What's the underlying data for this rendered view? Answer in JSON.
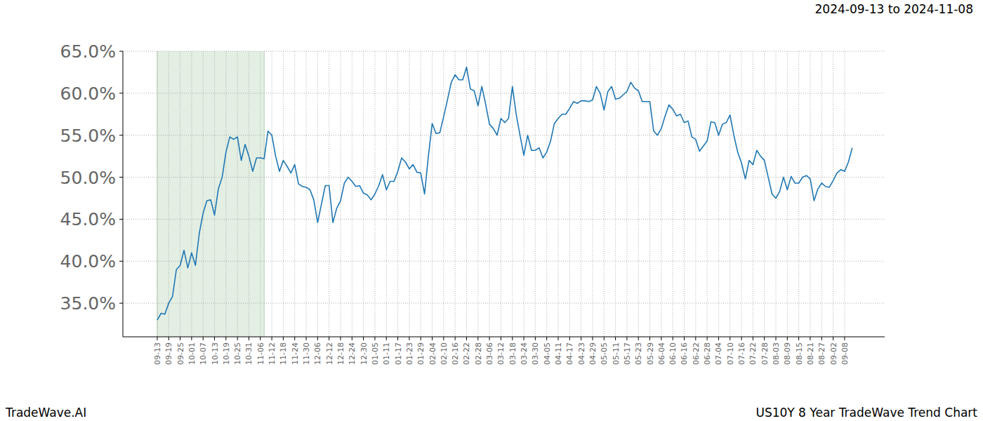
{
  "chart_data": {
    "type": "line",
    "title": "2024-09-13 to 2024-11-08",
    "annotations": [
      "TradeWave.AI",
      "US10Y 8 Year TradeWave Trend Chart"
    ],
    "categories": [
      "09-13",
      null,
      null,
      "09-19",
      null,
      null,
      "09-25",
      null,
      null,
      "10-01",
      null,
      null,
      "10-07",
      null,
      null,
      "10-13",
      null,
      null,
      "10-19",
      null,
      null,
      "10-25",
      null,
      null,
      "10-31",
      null,
      null,
      "11-06",
      null,
      null,
      "11-12",
      null,
      null,
      "11-18",
      null,
      null,
      "11-24",
      null,
      null,
      "11-30",
      null,
      null,
      "12-06",
      null,
      null,
      "12-12",
      null,
      null,
      "12-18",
      null,
      null,
      "12-24",
      null,
      null,
      "12-30",
      null,
      null,
      "01-05",
      null,
      null,
      "01-11",
      null,
      null,
      "01-17",
      null,
      null,
      "01-23",
      null,
      null,
      "01-29",
      null,
      null,
      "02-04",
      null,
      null,
      "02-10",
      null,
      null,
      "02-16",
      null,
      null,
      "02-22",
      null,
      null,
      "02-28",
      null,
      null,
      "03-06",
      null,
      null,
      "03-12",
      null,
      null,
      "03-18",
      null,
      null,
      "03-24",
      null,
      null,
      "03-30",
      null,
      null,
      "04-05",
      null,
      null,
      "04-11",
      null,
      null,
      "04-17",
      null,
      null,
      "04-23",
      null,
      null,
      "04-29",
      null,
      null,
      "05-05",
      null,
      null,
      "05-11",
      null,
      null,
      "05-17",
      null,
      null,
      "05-23",
      null,
      null,
      "05-29",
      null,
      null,
      "06-04",
      null,
      null,
      "06-10",
      null,
      null,
      "06-16",
      null,
      null,
      "06-22",
      null,
      null,
      "06-28",
      null,
      null,
      "07-04",
      null,
      null,
      "07-10",
      null,
      null,
      "07-16",
      null,
      null,
      "07-22",
      null,
      null,
      "07-28",
      null,
      null,
      "08-03",
      null,
      null,
      "08-09",
      null,
      null,
      "08-15",
      null,
      null,
      "08-21",
      null,
      null,
      "08-27",
      null,
      null,
      "09-02",
      null,
      null,
      "09-08",
      null,
      null
    ],
    "values": [
      33.0,
      33.8,
      33.7,
      35.0,
      35.8,
      39.0,
      39.5,
      41.3,
      39.2,
      41.0,
      39.5,
      43.3,
      45.7,
      47.2,
      47.3,
      45.5,
      48.6,
      50.0,
      53.0,
      54.8,
      54.5,
      54.8,
      52.0,
      53.9,
      52.5,
      50.7,
      52.3,
      52.3,
      52.2,
      55.5,
      55.0,
      52.5,
      50.7,
      52.0,
      51.3,
      50.5,
      51.5,
      49.2,
      48.9,
      48.8,
      48.5,
      47.3,
      44.6,
      46.8,
      49.0,
      49.0,
      44.6,
      46.3,
      47.2,
      49.3,
      50.0,
      49.5,
      48.9,
      49.0,
      48.1,
      47.9,
      47.3,
      48.0,
      49.0,
      50.3,
      48.5,
      49.5,
      49.5,
      50.7,
      52.3,
      51.8,
      51.0,
      51.5,
      50.6,
      50.5,
      48.0,
      52.5,
      56.4,
      55.2,
      55.3,
      57.2,
      59.2,
      61.3,
      62.2,
      61.6,
      61.6,
      63.1,
      60.5,
      60.3,
      58.5,
      60.8,
      58.7,
      56.3,
      55.8,
      55.0,
      57.0,
      56.5,
      57.0,
      60.8,
      57.5,
      55.0,
      52.6,
      55.0,
      53.2,
      53.2,
      53.5,
      52.3,
      53.0,
      54.3,
      56.4,
      57.0,
      57.5,
      57.5,
      58.2,
      59.0,
      58.8,
      59.1,
      59.1,
      59.0,
      59.2,
      60.8,
      60.0,
      58.0,
      60.2,
      60.8,
      59.3,
      59.4,
      59.8,
      60.2,
      61.3,
      60.6,
      60.3,
      59.0,
      59.0,
      59.0,
      55.5,
      55.0,
      55.8,
      57.3,
      58.6,
      58.1,
      57.3,
      57.5,
      56.5,
      56.7,
      54.8,
      54.5,
      53.1,
      53.7,
      54.3,
      56.6,
      56.5,
      55.0,
      56.3,
      56.5,
      57.4,
      55.0,
      53.0,
      51.7,
      49.8,
      52.0,
      51.5,
      53.2,
      52.5,
      52.0,
      50.0,
      48.0,
      47.5,
      48.3,
      50.0,
      48.5,
      50.1,
      49.3,
      49.3,
      50.0,
      50.2,
      49.8,
      47.2,
      48.6,
      49.3,
      48.9,
      48.8,
      49.6,
      50.5,
      50.9,
      50.7,
      51.8,
      53.5
    ],
    "color": "#1f77b4",
    "shaded_range": [
      0,
      28
    ],
    "ylim": [
      31,
      65
    ],
    "yticks": [
      {
        "value": 35,
        "label": "35.0%"
      },
      {
        "value": 40,
        "label": "40.0%"
      },
      {
        "value": 45,
        "label": "45.0%"
      },
      {
        "value": 50,
        "label": "50.0%"
      },
      {
        "value": 55,
        "label": "55.0%"
      },
      {
        "value": 60,
        "label": "60.0%"
      },
      {
        "value": 65,
        "label": "65.0%"
      }
    ],
    "grid": true
  }
}
